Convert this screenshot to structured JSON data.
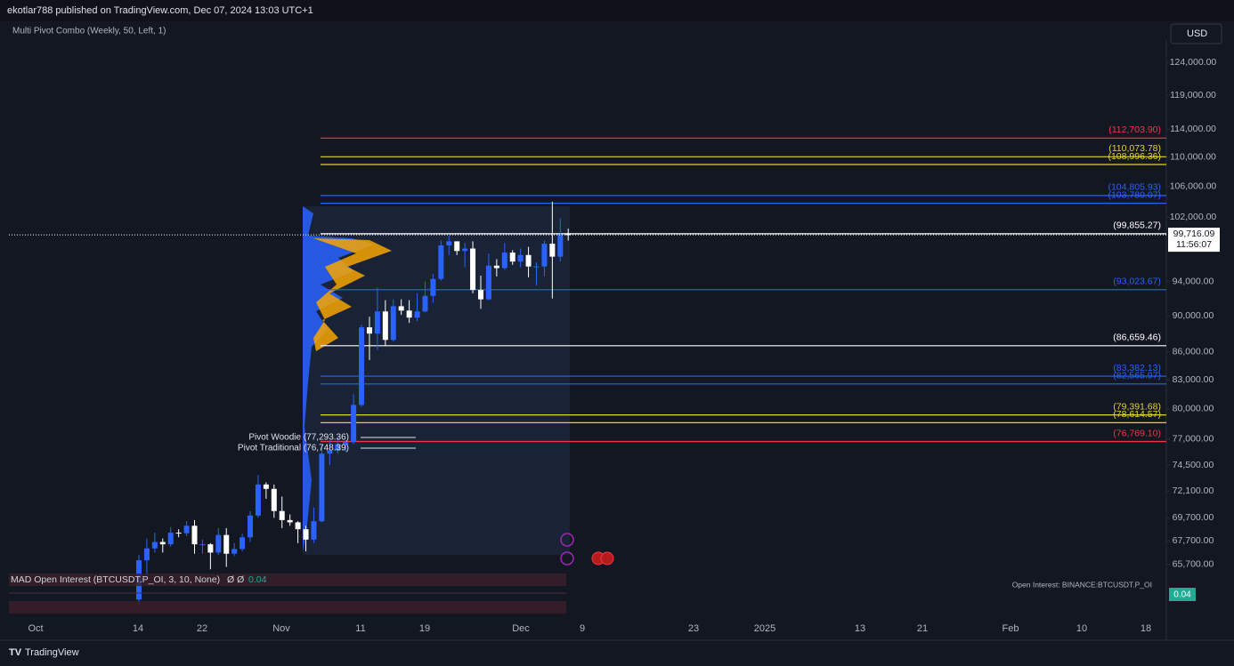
{
  "header": {
    "published": "ekotlar788 published on TradingView.com, Dec 07, 2024 13:03 UTC+1",
    "indicator": "Multi Pivot Combo (Weekly, 50, Left, 1)",
    "currency": "USD"
  },
  "chart_data": {
    "type": "candlestick",
    "log_scale": true,
    "grid": false,
    "up_color": "#2962ff",
    "down_color": "#ffffff",
    "x": [
      "Oct 14",
      "Oct 15",
      "Oct 16",
      "Oct 17",
      "Oct 18",
      "Oct 19",
      "Oct 20",
      "Oct 21",
      "Oct 22",
      "Oct 23",
      "Oct 24",
      "Oct 25",
      "Oct 26",
      "Oct 27",
      "Oct 28",
      "Oct 29",
      "Oct 30",
      "Oct 31",
      "Nov 1",
      "Nov 2",
      "Nov 3",
      "Nov 4",
      "Nov 5",
      "Nov 6",
      "Nov 7",
      "Nov 8",
      "Nov 9",
      "Nov 10",
      "Nov 11",
      "Nov 12",
      "Nov 13",
      "Nov 14",
      "Nov 15",
      "Nov 16",
      "Nov 17",
      "Nov 18",
      "Nov 19",
      "Nov 20",
      "Nov 21",
      "Nov 22",
      "Nov 23",
      "Nov 24",
      "Nov 25",
      "Nov 26",
      "Nov 27",
      "Nov 28",
      "Nov 29",
      "Nov 30",
      "Dec 1",
      "Dec 2",
      "Dec 3",
      "Dec 4",
      "Dec 5",
      "Dec 6",
      "Dec 7"
    ],
    "open": [
      62850,
      66050,
      67050,
      67600,
      67400,
      68400,
      68350,
      69000,
      67400,
      67400,
      66700,
      68200,
      66600,
      67000,
      68000,
      69900,
      72700,
      72300,
      70300,
      69500,
      69300,
      68700,
      67800,
      69400,
      75600,
      75900,
      76500,
      76700,
      80400,
      88700,
      88000,
      90500,
      87300,
      91100,
      90600,
      89800,
      90500,
      92300,
      94300,
      98400,
      98900,
      97700,
      98000,
      93000,
      91900,
      95900,
      95600,
      97500,
      96400,
      97200,
      95800,
      95800,
      98600,
      97000,
      99800
    ],
    "high": [
      66500,
      67900,
      68400,
      67900,
      68900,
      68700,
      69400,
      69500,
      67800,
      67500,
      68800,
      68800,
      67500,
      68300,
      70300,
      73600,
      72900,
      72700,
      71600,
      70000,
      69400,
      69000,
      70600,
      76400,
      76900,
      77200,
      76900,
      81500,
      89000,
      89900,
      93300,
      91800,
      91900,
      91900,
      91800,
      92600,
      94000,
      94900,
      99000,
      99600,
      98900,
      98700,
      98900,
      94700,
      97400,
      96700,
      98700,
      97800,
      98000,
      98200,
      96300,
      99000,
      104000,
      101800,
      100500
    ],
    "low": [
      62400,
      64800,
      66700,
      66700,
      67200,
      68000,
      68100,
      66600,
      66600,
      65300,
      66500,
      65500,
      66400,
      66800,
      67600,
      69700,
      71400,
      69700,
      68800,
      69000,
      67500,
      66800,
      67500,
      69300,
      74500,
      75600,
      75800,
      76500,
      80200,
      85100,
      86200,
      86700,
      87100,
      90100,
      89200,
      89400,
      90400,
      91500,
      94100,
      97200,
      97200,
      95700,
      92600,
      90800,
      91800,
      94600,
      95400,
      96000,
      95700,
      94500,
      93500,
      94600,
      92000,
      96400,
      99000
    ],
    "close": [
      66050,
      67050,
      67600,
      67400,
      68400,
      68350,
      69000,
      67400,
      67400,
      66700,
      68200,
      66600,
      67000,
      68000,
      69900,
      72700,
      72300,
      70300,
      69500,
      69300,
      68700,
      67800,
      69400,
      75600,
      75900,
      76500,
      76700,
      80400,
      88700,
      88000,
      90500,
      87300,
      91100,
      90600,
      89800,
      90500,
      92300,
      94300,
      98400,
      98900,
      97700,
      98000,
      93000,
      91900,
      95900,
      95600,
      97500,
      96400,
      97200,
      95800,
      95800,
      98600,
      97000,
      99800,
      99716
    ],
    "ylim": [
      65100,
      127600
    ],
    "yticks": [
      {
        "value": 124000,
        "label": "124,000.00"
      },
      {
        "value": 119000,
        "label": "119,000.00"
      },
      {
        "value": 114000,
        "label": "114,000.00"
      },
      {
        "value": 110000,
        "label": "110,000.00"
      },
      {
        "value": 106000,
        "label": "106,000.00"
      },
      {
        "value": 102000,
        "label": "102,000.00"
      },
      {
        "value": 94000,
        "label": "94,000.00"
      },
      {
        "value": 90000,
        "label": "90,000.00"
      },
      {
        "value": 86000,
        "label": "86,000.00"
      },
      {
        "value": 83000,
        "label": "83,000.00"
      },
      {
        "value": 80000,
        "label": "80,000.00"
      },
      {
        "value": 77000,
        "label": "77,000.00"
      },
      {
        "value": 74500,
        "label": "74,500.00"
      },
      {
        "value": 72100,
        "label": "72,100.00"
      },
      {
        "value": 69700,
        "label": "69,700.00"
      },
      {
        "value": 67700,
        "label": "67,700.00"
      },
      {
        "value": 65700,
        "label": "65,700.00"
      }
    ],
    "xticks": [
      "Oct",
      "14",
      "22",
      "Nov",
      "11",
      "19",
      "Dec",
      "9",
      "23",
      "2025",
      "13",
      "21",
      "Feb",
      "10",
      "18"
    ],
    "levels": [
      {
        "value": 112703.9,
        "label": "(112,703.90)",
        "color": "#f23645"
      },
      {
        "value": 110073.78,
        "label": "(110,073.78)",
        "color": "#e5d22c"
      },
      {
        "value": 108996.36,
        "label": "(108,996.36)",
        "color": "#e5d22c"
      },
      {
        "value": 104805.93,
        "label": "(104,805.93)",
        "color": "#2962ff"
      },
      {
        "value": 103780.07,
        "label": "(103,780.07)",
        "color": "#2962ff"
      },
      {
        "value": 99855.27,
        "label": "(99,855.27)",
        "color": "#ffffff"
      },
      {
        "value": 93023.67,
        "label": "(93,023.67)",
        "color": "#2962ff"
      },
      {
        "value": 86659.46,
        "label": "(86,659.46)",
        "color": "#ffffff"
      },
      {
        "value": 83382.13,
        "label": "(83,382.13)",
        "color": "#2962ff"
      },
      {
        "value": 82565.97,
        "label": "(82,565.97)",
        "color": "#2962ff"
      },
      {
        "value": 79391.68,
        "label": "(79,391.68)",
        "color": "#e5d22c"
      },
      {
        "value": 78614.57,
        "label": "(78,614.57)",
        "color": "#e5d22c"
      },
      {
        "value": 76769.1,
        "label": "(76,769.10)",
        "color": "#f23645"
      }
    ],
    "last_price": {
      "value": 99716.09,
      "label": "99,716.09"
    },
    "countdown": "11:56:07",
    "annotations": [
      "Pivot Woodie (77,293.36)",
      "Pivot Traditional (76,748.39)"
    ]
  },
  "indicator_pane": {
    "title": "MAD Open Interest (BTCUSDT.P_OI, 3, 10, None)",
    "symbols": "Ø Ø",
    "value": "0.04",
    "source": "Open Interest: BINANCE:BTCUSDT.P_OI"
  },
  "footer": {
    "brand": "TradingView"
  }
}
